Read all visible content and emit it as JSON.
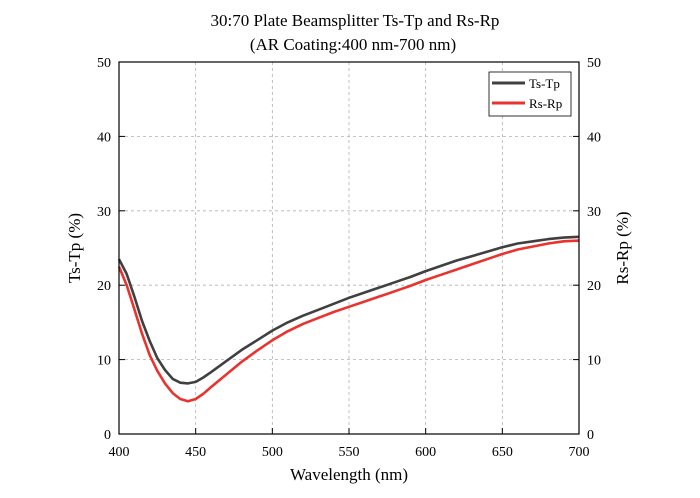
{
  "chart_data": {
    "type": "line",
    "title": "30:70 Plate Beamsplitter Ts-Tp and Rs-Rp",
    "subtitle": "(AR Coating:400 nm-700 nm)",
    "xlabel": "Wavelength (nm)",
    "ylabel_left": "Ts-Tp (%)",
    "ylabel_right": "Rs-Rp (%)",
    "xlim": [
      400,
      700
    ],
    "ylim": [
      0,
      50
    ],
    "x_ticks": [
      "400",
      "450",
      "500",
      "550",
      "600",
      "650",
      "700"
    ],
    "y_ticks": [
      "0",
      "10",
      "20",
      "30",
      "40",
      "50"
    ],
    "grid": true,
    "legend_position": "top-right",
    "x": [
      400,
      405,
      410,
      415,
      420,
      425,
      430,
      435,
      440,
      445,
      450,
      455,
      460,
      470,
      480,
      490,
      500,
      510,
      520,
      530,
      540,
      550,
      560,
      570,
      580,
      590,
      600,
      610,
      620,
      630,
      640,
      650,
      660,
      670,
      680,
      690,
      700
    ],
    "series": [
      {
        "name": "Ts-Tp",
        "color": "#404040",
        "values": [
          23.5,
          21.5,
          18.5,
          15.2,
          12.5,
          10.2,
          8.6,
          7.4,
          6.9,
          6.8,
          7.0,
          7.6,
          8.3,
          9.8,
          11.3,
          12.6,
          13.9,
          15.0,
          15.9,
          16.7,
          17.5,
          18.3,
          19.0,
          19.7,
          20.4,
          21.1,
          21.9,
          22.6,
          23.3,
          23.9,
          24.5,
          25.1,
          25.6,
          25.9,
          26.2,
          26.4,
          26.5
        ]
      },
      {
        "name": "Rs-Rp",
        "color": "#e8332e",
        "values": [
          22.5,
          20.0,
          16.8,
          13.5,
          10.6,
          8.5,
          6.8,
          5.5,
          4.7,
          4.4,
          4.7,
          5.4,
          6.3,
          8.0,
          9.7,
          11.2,
          12.6,
          13.8,
          14.8,
          15.6,
          16.4,
          17.1,
          17.8,
          18.5,
          19.2,
          19.9,
          20.7,
          21.4,
          22.1,
          22.8,
          23.5,
          24.2,
          24.8,
          25.2,
          25.6,
          25.9,
          26.0
        ]
      }
    ]
  }
}
